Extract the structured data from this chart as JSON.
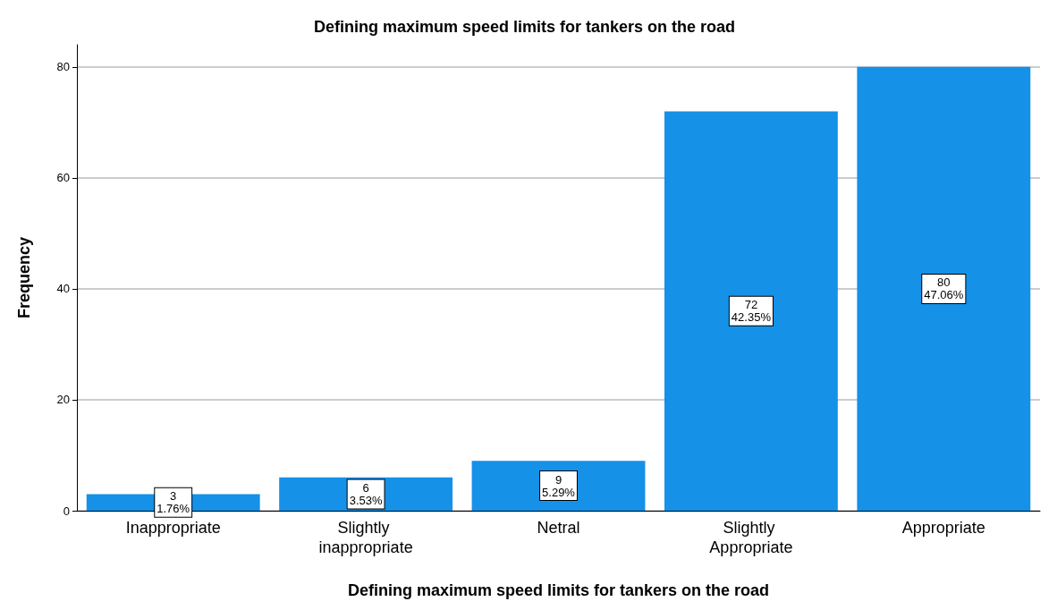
{
  "chart_data": {
    "type": "bar",
    "title": "Defining maximum speed limits for tankers on the road",
    "xlabel": "Defining maximum speed limits for tankers on the road",
    "ylabel": "Frequency",
    "categories": [
      "Inappropriate",
      "Slightly inappropriate",
      "Netral",
      "Slightly Appropriate",
      "Appropriate"
    ],
    "values": [
      3,
      6,
      9,
      72,
      80
    ],
    "value_labels": [
      "3\n1.76%",
      "6\n3.53%",
      "9\n5.29%",
      "72\n42.35%",
      "80\n47.06%"
    ],
    "color": "#1591e8",
    "ylim": [
      0,
      84
    ],
    "yticks": [
      0,
      20,
      40,
      60,
      80
    ],
    "grid": "y"
  }
}
